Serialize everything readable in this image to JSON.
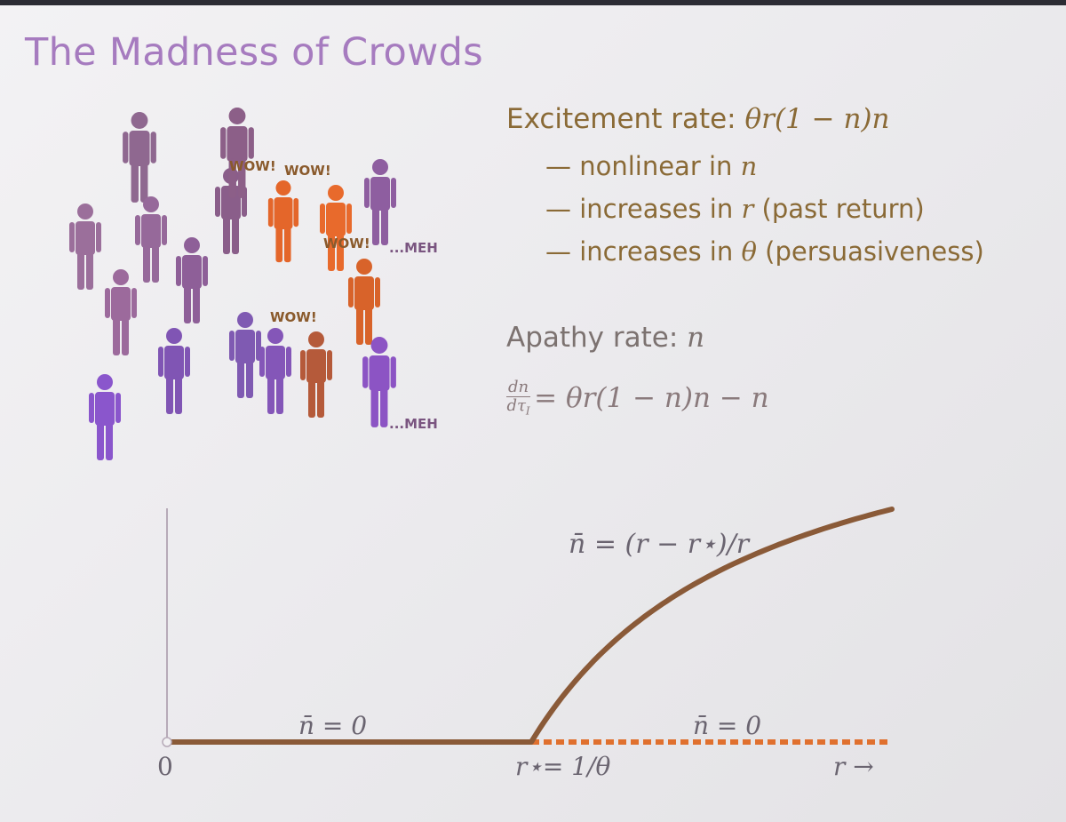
{
  "slide": {
    "title": "The Madness of Crowds"
  },
  "crowd": {
    "speech": [
      {
        "text": "WOW!",
        "x": 0,
        "y": 0
      },
      {
        "text": "WOW!",
        "x": 0,
        "y": 0
      },
      {
        "text": "WOW!",
        "x": 0,
        "y": 0
      },
      {
        "text": "WOW!",
        "x": 0,
        "y": 0
      }
    ],
    "meh": [
      "...MEH",
      "...MEH"
    ]
  },
  "text": {
    "excitement_label": "Excitement rate:",
    "excitement_formula": "θr(1 − n)n",
    "bullets": [
      {
        "dash": "—",
        "prefix": "nonlinear in ",
        "sym": "n",
        "suffix": ""
      },
      {
        "dash": "—",
        "prefix": "increases in ",
        "sym": "r",
        "suffix": " (past return)"
      },
      {
        "dash": "—",
        "prefix": "increases in ",
        "sym": "θ",
        "suffix": " (persuasiveness)"
      }
    ],
    "apathy_label": "Apathy rate:",
    "apathy_formula": "n",
    "ode_num": "dn",
    "ode_den": "dτ",
    "ode_sub": "I",
    "ode_rhs": "= θr(1 − n)n − n"
  },
  "plot": {
    "labels": {
      "upper_branch": "n̄ = (r − r⋆)/r",
      "left_branch": "n̄ = 0",
      "right_branch": "n̄ = 0",
      "origin": "0",
      "critical": "r⋆= 1/θ",
      "axis": "r →"
    },
    "colors": {
      "stable": "#8a5a38",
      "unstable": "#e0702e",
      "axis": "#b7aab8",
      "label": "#6a6470"
    }
  },
  "chart_data": {
    "type": "line",
    "title": "",
    "xlabel": "r →",
    "ylabel": "",
    "x_ticks": [
      "0",
      "r⋆= 1/θ"
    ],
    "series": [
      {
        "name": "n̄ = 0",
        "style": "solid",
        "x_range": [
          "0",
          "r⋆"
        ],
        "y": 0
      },
      {
        "name": "n̄ = 0",
        "style": "dashed",
        "x_range": [
          "r⋆",
          "r →"
        ],
        "y": 0
      },
      {
        "name": "n̄ = (r − r⋆)/r",
        "style": "solid",
        "x_range": [
          "r⋆",
          "r →"
        ],
        "formula": "(r − r⋆)/r"
      }
    ]
  }
}
